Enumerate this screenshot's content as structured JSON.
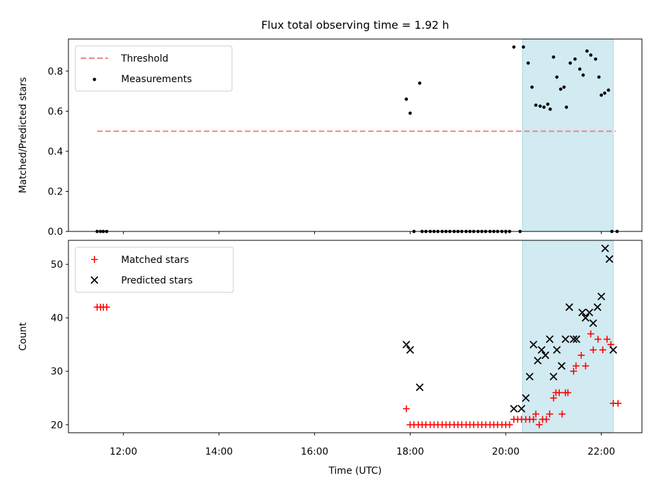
{
  "figure": {
    "title": "Flux total observing time = 1.92 h",
    "xlabel": "Time (UTC)"
  },
  "colors": {
    "shade": "#add8e6",
    "threshold": "#f08080",
    "measurement": "#000000",
    "matched": "#ff0000",
    "predicted": "#000000"
  },
  "chart_data": [
    {
      "type": "scatter",
      "ylabel": "Matched/Predicted stars",
      "x_unit": "hours UTC",
      "xlim": [
        10.85,
        22.85
      ],
      "ylim": [
        0,
        0.96
      ],
      "yticks": [
        0.0,
        0.2,
        0.4,
        0.6,
        0.8
      ],
      "ytick_labels": [
        "0.0",
        "0.2",
        "0.4",
        "0.6",
        "0.8"
      ],
      "shaded_interval": [
        20.35,
        22.25
      ],
      "legend": {
        "location": "upper left",
        "entries": [
          "Threshold",
          "Measurements"
        ]
      },
      "threshold": {
        "name": "Threshold",
        "y": 0.5,
        "x_range": [
          11.45,
          22.3
        ]
      },
      "series": [
        {
          "name": "Measurements",
          "marker": "dot",
          "x": [
            11.45,
            11.52,
            11.58,
            11.65,
            17.92,
            18.0,
            18.08,
            18.2,
            18.25,
            18.33,
            18.42,
            18.5,
            18.58,
            18.67,
            18.75,
            18.83,
            18.92,
            19.0,
            19.08,
            19.17,
            19.25,
            19.33,
            19.42,
            19.5,
            19.58,
            19.67,
            19.75,
            19.83,
            19.92,
            20.0,
            20.08,
            20.17,
            20.3,
            20.37,
            20.47,
            20.55,
            20.63,
            20.72,
            20.8,
            20.88,
            20.93,
            21.0,
            21.07,
            21.15,
            21.22,
            21.27,
            21.35,
            21.45,
            21.55,
            21.62,
            21.7,
            21.78,
            21.88,
            21.95,
            22.0,
            22.07,
            22.15,
            22.22,
            22.33
          ],
          "y": [
            0,
            0,
            0,
            0,
            0.66,
            0.59,
            0,
            0.74,
            0,
            0,
            0,
            0,
            0,
            0,
            0,
            0,
            0,
            0,
            0,
            0,
            0,
            0,
            0,
            0,
            0,
            0,
            0,
            0,
            0,
            0,
            0,
            0.92,
            0,
            0.92,
            0.84,
            0.72,
            0.63,
            0.625,
            0.62,
            0.635,
            0.61,
            0.87,
            0.77,
            0.71,
            0.72,
            0.62,
            0.84,
            0.86,
            0.81,
            0.78,
            0.9,
            0.88,
            0.86,
            0.77,
            0.68,
            0.69,
            0.705,
            0.0,
            0.0
          ]
        }
      ]
    },
    {
      "type": "scatter",
      "ylabel": "Count",
      "x_unit": "hours UTC",
      "xlim": [
        10.85,
        22.85
      ],
      "ylim": [
        18.5,
        54.5
      ],
      "yticks": [
        20,
        30,
        40,
        50
      ],
      "ytick_labels": [
        "20",
        "30",
        "40",
        "50"
      ],
      "xticks": [
        12,
        14,
        16,
        18,
        20,
        22
      ],
      "xtick_labels": [
        "12:00",
        "14:00",
        "16:00",
        "18:00",
        "20:00",
        "22:00"
      ],
      "shaded_interval": [
        20.35,
        22.25
      ],
      "legend": {
        "location": "upper left",
        "entries": [
          "Matched stars",
          "Predicted stars"
        ]
      },
      "series": [
        {
          "name": "Matched stars",
          "marker": "plus",
          "x": [
            11.45,
            11.52,
            11.58,
            11.65,
            17.92,
            18.0,
            18.08,
            18.17,
            18.25,
            18.33,
            18.42,
            18.5,
            18.58,
            18.67,
            18.75,
            18.83,
            18.92,
            19.0,
            19.08,
            19.17,
            19.25,
            19.33,
            19.42,
            19.5,
            19.58,
            19.67,
            19.75,
            19.83,
            19.92,
            20.0,
            20.08,
            20.17,
            20.25,
            20.33,
            20.42,
            20.5,
            20.58,
            20.63,
            20.7,
            20.77,
            20.85,
            20.92,
            21.0,
            21.05,
            21.12,
            21.18,
            21.25,
            21.3,
            21.42,
            21.47,
            21.58,
            21.67,
            21.78,
            21.83,
            21.93,
            22.03,
            22.12,
            22.2,
            22.25,
            22.35
          ],
          "y": [
            42,
            42,
            42,
            42,
            23,
            20,
            20,
            20,
            20,
            20,
            20,
            20,
            20,
            20,
            20,
            20,
            20,
            20,
            20,
            20,
            20,
            20,
            20,
            20,
            20,
            20,
            20,
            20,
            20,
            20,
            20,
            21,
            21,
            21,
            21,
            21,
            21,
            22,
            20,
            21,
            21,
            22,
            25,
            26,
            26,
            22,
            26,
            26,
            30,
            31,
            33,
            31,
            37,
            34,
            36,
            34,
            36,
            35,
            24,
            24
          ]
        },
        {
          "name": "Predicted stars",
          "marker": "x",
          "x": [
            17.92,
            18.0,
            18.2,
            20.17,
            20.33,
            20.42,
            20.5,
            20.58,
            20.67,
            20.75,
            20.83,
            20.92,
            21.0,
            21.07,
            21.17,
            21.25,
            21.33,
            21.42,
            21.48,
            21.6,
            21.67,
            21.75,
            21.83,
            21.92,
            22.0,
            22.08,
            22.17,
            22.25
          ],
          "y": [
            35,
            34,
            27,
            23,
            23,
            25,
            29,
            35,
            32,
            34,
            33,
            36,
            29,
            34,
            31,
            36,
            42,
            36,
            36,
            41,
            40,
            41,
            39,
            42,
            44,
            53,
            51,
            34
          ]
        }
      ]
    }
  ]
}
